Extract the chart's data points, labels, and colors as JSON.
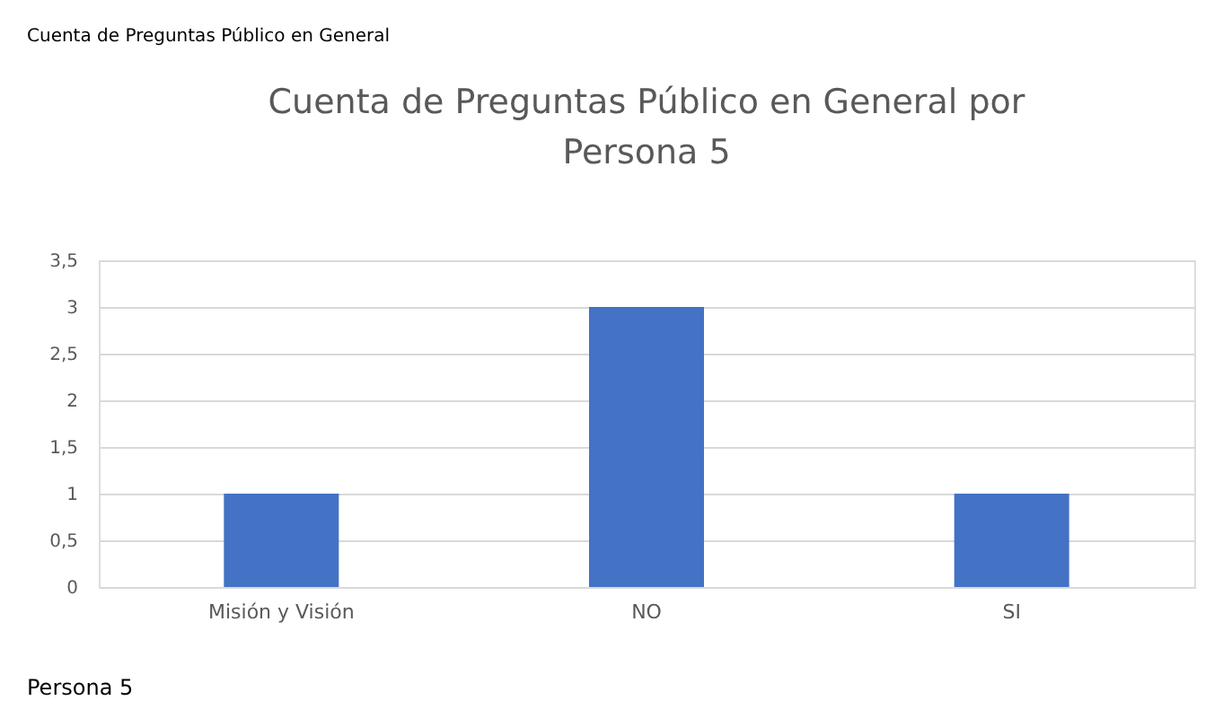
{
  "chart_data": {
    "type": "bar",
    "title": "Cuenta de Preguntas Público en General por Persona 5",
    "categories": [
      "Misión y Visión",
      "NO",
      "SI"
    ],
    "values": [
      1,
      3,
      1
    ],
    "color": "#4472c4",
    "ylim": [
      0,
      3.5
    ],
    "yticks": [
      0,
      {
        "value": 0.5,
        "label": "0,5"
      },
      1,
      {
        "value": 1.5,
        "label": "1,5"
      },
      2,
      {
        "value": 2.5,
        "label": "2,5"
      },
      3,
      {
        "value": 3.5,
        "label": "3,5"
      }
    ],
    "grid": "y",
    "annotations": [
      "Cuenta de Preguntas Público en General",
      "Persona 5"
    ]
  }
}
